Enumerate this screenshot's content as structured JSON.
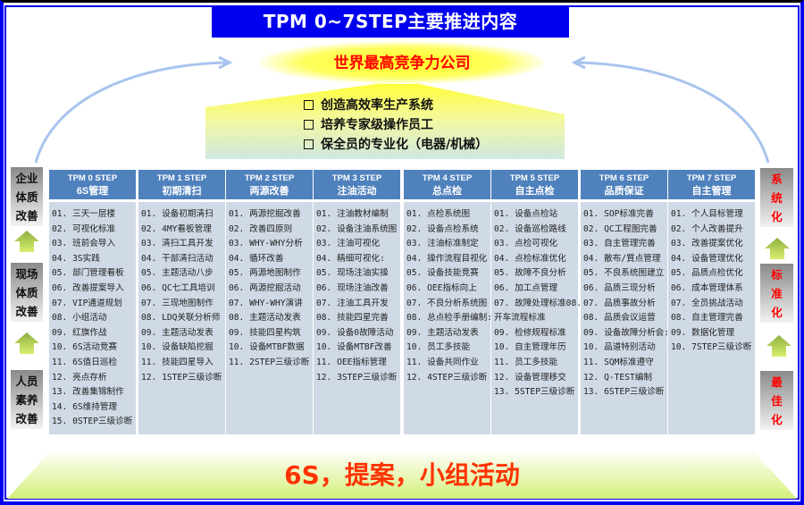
{
  "title": "TPM 0~7STEP主要推进内容",
  "goal": "世界最高竞争力公司",
  "aims": [
    "创造高效率生产系统",
    "培养专家级操作员工",
    "保全员的专业化（电器/机械）"
  ],
  "left_levels": [
    [
      "企业",
      "体质",
      "改善"
    ],
    [
      "现场",
      "体质",
      "改善"
    ],
    [
      "人员",
      "素养",
      "改善"
    ]
  ],
  "right_levels": [
    [
      "系",
      "统",
      "化"
    ],
    [
      "标",
      "准",
      "化"
    ],
    [
      "最",
      "佳",
      "化"
    ]
  ],
  "steps": [
    {
      "step": "TPM 0 STEP",
      "name": "6S管理",
      "items": [
        "01. 三天一层楼",
        "02. 可视化标准",
        "03. 班前会导入",
        "04. 3S实践",
        "05. 部门管理看板",
        "06. 改善提案导入",
        "07. VIP通道规划",
        "08. 小组活动",
        "09. 红旗作战",
        "10. 6S活动竞赛",
        "11. 6S值日巡检",
        "12. 亮点存析",
        "13. 改善集锦制作",
        "14. 6S维持管理",
        "15. 0STEP三级诊断"
      ]
    },
    {
      "step": "TPM 1 STEP",
      "name": "初期清扫",
      "items": [
        "01. 设备初期清扫",
        "02. 4MY看板管理",
        "03. 清扫工具开发",
        "04. 干部清扫活动",
        "05. 主题活动八步",
        "06. QC七工具培训",
        "07. 三现地图制作",
        "08. LDQ关联分析师",
        "09. 主题活动发表",
        "10. 设备缺陷挖掘",
        "11. 技能四星导入",
        "12. 1STEP三级诊断"
      ]
    },
    {
      "step": "TPM 2 STEP",
      "name": "两源改善",
      "items": [
        "01. 两源挖掘改善",
        "02. 改善四原则",
        "03. WHY-WHY分析",
        "04. 循环改善",
        "05. 两源地图制作",
        "06. 两源挖掘活动",
        "07. WHY-WHY演讲",
        "08. 主题活动发表",
        "09. 技能四星构筑",
        "10. 设备MTBF数据",
        "11. 2STEP三级诊断"
      ]
    },
    {
      "step": "TPM 3 STEP",
      "name": "注油活动",
      "items": [
        "01. 注油教材编制",
        "02. 设备注油系统图",
        "03. 注油可视化",
        "04. 精细可视化:",
        "05. 现场注油实操",
        "06. 现场注油改善",
        "07. 注油工具开发",
        "08. 技能四星完善",
        "09. 设备0故障活动",
        "10. 设备MTBF改善",
        "11. OEE指标管理",
        "12. 3STEP三级诊断"
      ]
    },
    {
      "step": "TPM 4 STEP",
      "name": "总点检",
      "items": [
        "01. 点检系统图",
        "02. 设备点检系统",
        "03. 注油标准制定",
        "04. 操作流程目视化",
        "05. 设备技能竞赛",
        "06. OEE指标向上",
        "07. 不良分析系统图",
        "08. 总点检手册编制:",
        "09. 主题活动发表",
        "10. 员工多技能",
        "11. 设备共同作业",
        "12. 4STEP三级诊断"
      ]
    },
    {
      "step": "TPM 5 STEP",
      "name": "自主点检",
      "items": [
        "01. 设备点检站",
        "02. 设备巡检路线",
        "03. 点检可视化",
        "04. 点检标准优化",
        "05. 故障不良分析",
        "06. 加工点管理",
        "07. 故障处理标准08.",
        "开车流程标准",
        "09. 检修规程标准",
        "10. 自主管理年历",
        "11. 员工多技能",
        "12. 设备管理移交",
        "13. 5STEP三级诊断"
      ]
    },
    {
      "step": "TPM 6 STEP",
      "name": "品质保证",
      "items": [
        "01. SOP标准完善",
        "02. QC工程图完善",
        "03. 自主管理完善",
        "04. 散布/質点管理",
        "05. 不良系统图建立",
        "06. 品质三现分析",
        "07. 品质事故分析",
        "08. 品质会议运营",
        "09. 设备故障分析会:",
        "10. 品道特别活动",
        "11. SQM标准遵守",
        "12. Q-TEST编制",
        "13. 6STEP三级诊断"
      ]
    },
    {
      "step": "TPM 7 STEP",
      "name": "自主管理",
      "items": [
        "01. 个人目标管理",
        "02. 个人改善提升",
        "03. 改善提案优化",
        "04. 设备管理优化",
        "05. 品质点检优化",
        "06. 成本管理体系",
        "07. 全员挑战活动",
        "08. 自主管理完善",
        "09. 数据化管理",
        "10. 7STEP三级诊断"
      ]
    }
  ],
  "foundation": "6S，提案，小组活动",
  "colors": {
    "title_bg": "#0000ee",
    "header_bg": "#4f81bd",
    "list_bg": "#d0d9e6",
    "goal_text": "#ff0000",
    "foundation_text": "#ff3300",
    "arrow_green": "#c6e070"
  }
}
